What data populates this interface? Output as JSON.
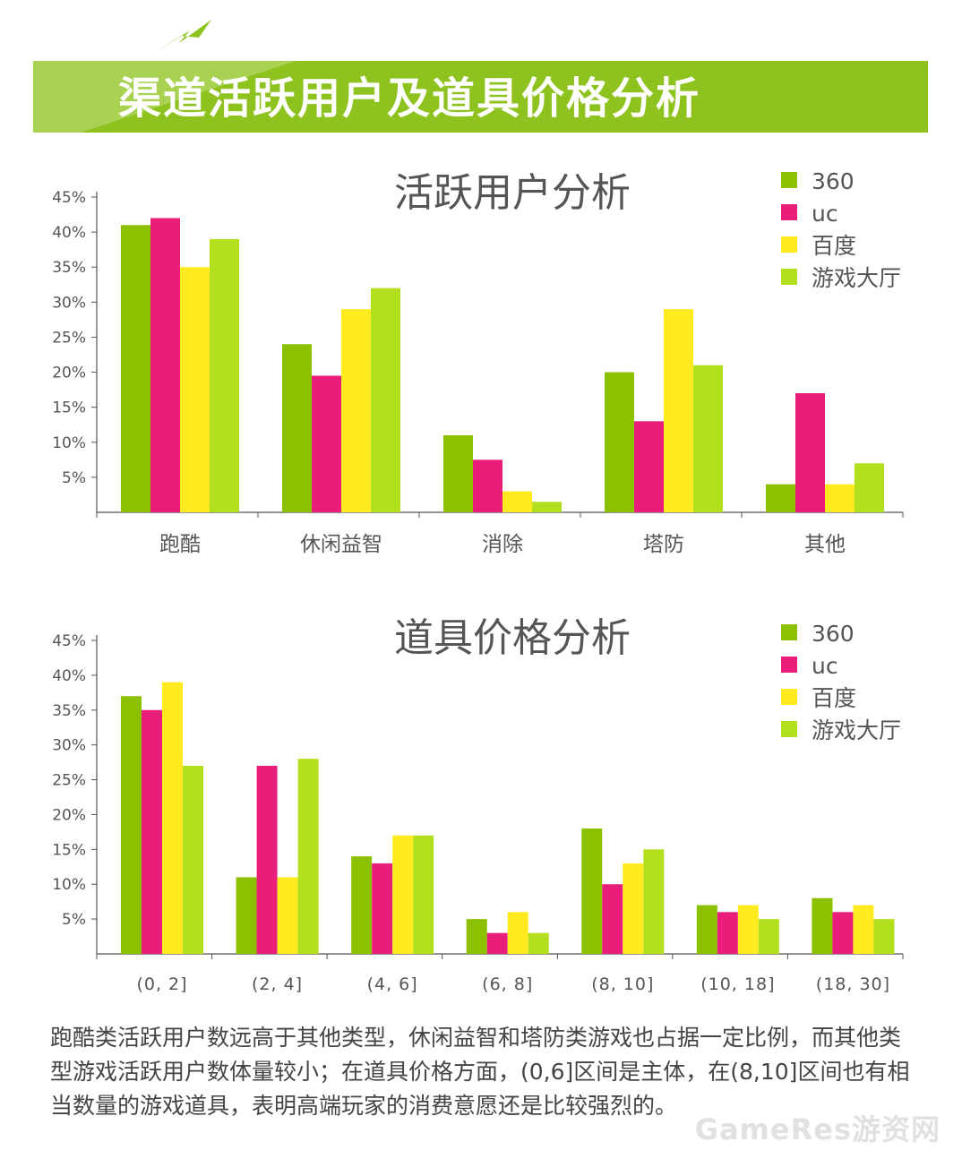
{
  "header": {
    "title": "渠道活跃用户及道具价格分析"
  },
  "colors": {
    "banner": "#8dc21f",
    "banner_light": "#b5d96a",
    "accent_dark": "#6e9a14"
  },
  "charts": [
    {
      "id": "chart-1",
      "chart_data": {
        "type": "bar",
        "title": "活跃用户分析",
        "categories": [
          "跑酷",
          "休闲益智",
          "消除",
          "塔防",
          "其他"
        ],
        "ylim": [
          0,
          45
        ],
        "yticks": [
          "5%",
          "10%",
          "15%",
          "20%",
          "25%",
          "30%",
          "35%",
          "40%",
          "45%"
        ],
        "ytick_values": [
          5,
          10,
          15,
          20,
          25,
          30,
          35,
          40,
          45
        ],
        "legend_position": "top-right",
        "series": [
          {
            "name": "360",
            "color": "#8bc101",
            "values": [
              41,
              24,
              11,
              20,
              4
            ]
          },
          {
            "name": "uc",
            "color": "#e91e7a",
            "values": [
              42,
              19.5,
              7.5,
              13,
              17
            ]
          },
          {
            "name": "百度",
            "color": "#ffeb1f",
            "values": [
              35,
              29,
              3,
              29,
              4
            ]
          },
          {
            "name": "游戏大厅",
            "color": "#b2e01e",
            "values": [
              39,
              32,
              1.5,
              21,
              7
            ]
          }
        ]
      }
    },
    {
      "id": "chart-2",
      "chart_data": {
        "type": "bar",
        "title": "道具价格分析",
        "categories": [
          "(0, 2]",
          "(2, 4]",
          "(4, 6]",
          "(6, 8]",
          "(8, 10]",
          "(10, 18]",
          "(18, 30]"
        ],
        "ylim": [
          0,
          45
        ],
        "yticks": [
          "5%",
          "10%",
          "15%",
          "20%",
          "25%",
          "30%",
          "35%",
          "40%",
          "45%"
        ],
        "ytick_values": [
          5,
          10,
          15,
          20,
          25,
          30,
          35,
          40,
          45
        ],
        "legend_position": "top-right",
        "series": [
          {
            "name": "360",
            "color": "#8bc101",
            "values": [
              37,
              11,
              14,
              5,
              18,
              7,
              8
            ]
          },
          {
            "name": "uc",
            "color": "#e91e7a",
            "values": [
              35,
              27,
              13,
              3,
              10,
              6,
              6
            ]
          },
          {
            "name": "百度",
            "color": "#ffeb1f",
            "values": [
              39,
              11,
              17,
              6,
              13,
              7,
              7
            ]
          },
          {
            "name": "游戏大厅",
            "color": "#b2e01e",
            "values": [
              27,
              28,
              17,
              3,
              15,
              5,
              5
            ]
          }
        ]
      }
    }
  ],
  "summary": "跑酷类活跃用户数远高于其他类型，休闲益智和塔防类游戏也占据一定比例，而其他类型游戏活跃用户数体量较小；在道具价格方面，(0,6]区间是主体，在(8,10]区间也有相当数量的游戏道具，表明高端玩家的消费意愿还是比较强烈的。",
  "watermark": "GameRes游资网"
}
